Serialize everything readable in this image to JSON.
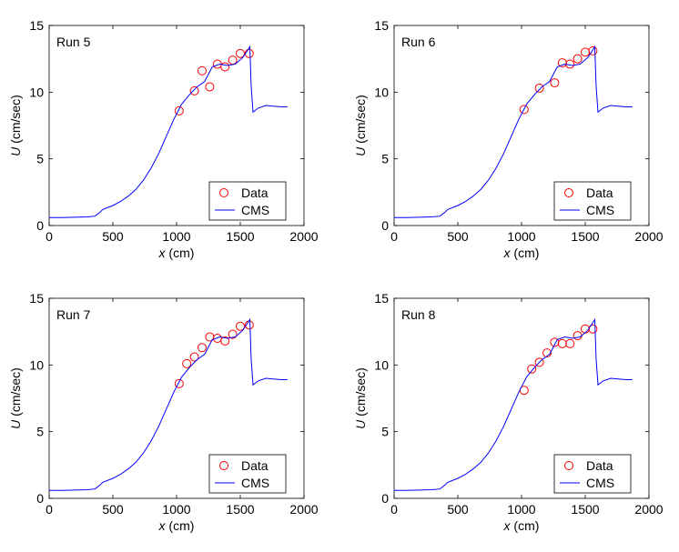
{
  "figure": {
    "colors": {
      "data": "#ff0000",
      "cms": "#0000ff",
      "axes": "#000000"
    }
  },
  "chart_data": [
    {
      "type": "line",
      "title": "Run 5",
      "xlabel_var": "x",
      "xlabel_unit": " (cm)",
      "ylabel_var": "U",
      "ylabel_unit": " (cm/sec)",
      "xlim": [
        0,
        2000
      ],
      "ylim": [
        0,
        15
      ],
      "xticks": [
        0,
        500,
        1000,
        1500,
        2000
      ],
      "yticks": [
        0,
        5,
        10,
        15
      ],
      "grid": false,
      "legend_position": "bottom-right",
      "series": [
        {
          "name": "Data",
          "kind": "scatter",
          "x": [
            1020,
            1140,
            1200,
            1260,
            1320,
            1380,
            1440,
            1500,
            1570
          ],
          "y": [
            8.6,
            10.1,
            11.6,
            10.4,
            12.1,
            11.9,
            12.4,
            12.9,
            12.9
          ]
        },
        {
          "name": "CMS",
          "kind": "line",
          "x": [
            0,
            100,
            200,
            300,
            360,
            400,
            420,
            500,
            560,
            620,
            680,
            740,
            800,
            860,
            920,
            980,
            1040,
            1100,
            1160,
            1220,
            1280,
            1340,
            1400,
            1460,
            1520,
            1575,
            1585,
            1600,
            1640,
            1700,
            1760,
            1820,
            1870
          ],
          "y": [
            0.6,
            0.6,
            0.62,
            0.65,
            0.7,
            1.0,
            1.2,
            1.5,
            1.8,
            2.2,
            2.7,
            3.4,
            4.3,
            5.4,
            6.7,
            8.0,
            9.1,
            9.8,
            10.4,
            10.8,
            11.9,
            12.1,
            12.0,
            12.1,
            12.6,
            13.4,
            10.5,
            8.5,
            8.8,
            9.0,
            8.95,
            8.9,
            8.9
          ]
        }
      ]
    },
    {
      "type": "line",
      "title": "Run 6",
      "xlabel_var": "x",
      "xlabel_unit": " (cm)",
      "ylabel_var": "U",
      "ylabel_unit": " (cm/sec)",
      "xlim": [
        0,
        2000
      ],
      "ylim": [
        0,
        15
      ],
      "xticks": [
        0,
        500,
        1000,
        1500,
        2000
      ],
      "yticks": [
        0,
        5,
        10,
        15
      ],
      "grid": false,
      "legend_position": "bottom-right",
      "series": [
        {
          "name": "Data",
          "kind": "scatter",
          "x": [
            1020,
            1140,
            1260,
            1320,
            1380,
            1440,
            1500,
            1560
          ],
          "y": [
            8.7,
            10.3,
            10.7,
            12.2,
            12.1,
            12.5,
            13.0,
            13.1
          ]
        },
        {
          "name": "CMS",
          "kind": "line",
          "x": [
            0,
            100,
            200,
            300,
            360,
            400,
            420,
            500,
            560,
            620,
            680,
            740,
            800,
            860,
            920,
            980,
            1040,
            1100,
            1160,
            1220,
            1280,
            1340,
            1400,
            1460,
            1520,
            1575,
            1585,
            1600,
            1640,
            1700,
            1760,
            1820,
            1870
          ],
          "y": [
            0.6,
            0.6,
            0.62,
            0.65,
            0.7,
            1.0,
            1.2,
            1.5,
            1.8,
            2.2,
            2.7,
            3.4,
            4.3,
            5.4,
            6.7,
            8.0,
            9.1,
            9.8,
            10.4,
            10.8,
            11.9,
            12.1,
            12.0,
            12.1,
            12.6,
            13.4,
            10.5,
            8.5,
            8.8,
            9.0,
            8.95,
            8.9,
            8.9
          ]
        }
      ]
    },
    {
      "type": "line",
      "title": "Run 7",
      "xlabel_var": "x",
      "xlabel_unit": " (cm)",
      "ylabel_var": "U",
      "ylabel_unit": " (cm/sec)",
      "xlim": [
        0,
        2000
      ],
      "ylim": [
        0,
        15
      ],
      "xticks": [
        0,
        500,
        1000,
        1500,
        2000
      ],
      "yticks": [
        0,
        5,
        10,
        15
      ],
      "grid": false,
      "legend_position": "bottom-right",
      "series": [
        {
          "name": "Data",
          "kind": "scatter",
          "x": [
            1020,
            1080,
            1140,
            1200,
            1260,
            1320,
            1380,
            1440,
            1500,
            1570
          ],
          "y": [
            8.6,
            10.1,
            10.6,
            11.3,
            12.1,
            12.0,
            11.8,
            12.3,
            12.9,
            13.0
          ]
        },
        {
          "name": "CMS",
          "kind": "line",
          "x": [
            0,
            100,
            200,
            300,
            360,
            400,
            420,
            500,
            560,
            620,
            680,
            740,
            800,
            860,
            920,
            980,
            1040,
            1100,
            1160,
            1220,
            1280,
            1340,
            1400,
            1460,
            1520,
            1575,
            1585,
            1600,
            1640,
            1700,
            1760,
            1820,
            1870
          ],
          "y": [
            0.6,
            0.6,
            0.62,
            0.65,
            0.7,
            1.0,
            1.2,
            1.5,
            1.8,
            2.2,
            2.7,
            3.4,
            4.3,
            5.4,
            6.7,
            8.0,
            9.1,
            9.8,
            10.4,
            10.8,
            11.9,
            12.1,
            12.0,
            12.1,
            12.6,
            13.4,
            10.5,
            8.5,
            8.8,
            9.0,
            8.95,
            8.9,
            8.9
          ]
        }
      ]
    },
    {
      "type": "line",
      "title": "Run 8",
      "xlabel_var": "x",
      "xlabel_unit": " (cm)",
      "ylabel_var": "U",
      "ylabel_unit": " (cm/sec)",
      "xlim": [
        0,
        2000
      ],
      "ylim": [
        0,
        15
      ],
      "xticks": [
        0,
        500,
        1000,
        1500,
        2000
      ],
      "yticks": [
        0,
        5,
        10,
        15
      ],
      "grid": false,
      "legend_position": "bottom-right",
      "series": [
        {
          "name": "Data",
          "kind": "scatter",
          "x": [
            1020,
            1080,
            1140,
            1200,
            1260,
            1320,
            1380,
            1440,
            1500,
            1560
          ],
          "y": [
            8.1,
            9.7,
            10.2,
            10.9,
            11.7,
            11.6,
            11.6,
            12.2,
            12.7,
            12.7
          ]
        },
        {
          "name": "CMS",
          "kind": "line",
          "x": [
            0,
            100,
            200,
            300,
            360,
            400,
            420,
            500,
            560,
            620,
            680,
            740,
            800,
            860,
            920,
            980,
            1040,
            1100,
            1160,
            1220,
            1280,
            1340,
            1400,
            1460,
            1520,
            1575,
            1585,
            1600,
            1640,
            1700,
            1760,
            1820,
            1870
          ],
          "y": [
            0.6,
            0.6,
            0.62,
            0.65,
            0.7,
            1.0,
            1.2,
            1.5,
            1.8,
            2.2,
            2.7,
            3.4,
            4.3,
            5.4,
            6.7,
            8.0,
            9.1,
            9.8,
            10.4,
            10.8,
            11.9,
            12.1,
            12.0,
            12.1,
            12.6,
            13.4,
            10.5,
            8.5,
            8.8,
            9.0,
            8.95,
            8.9,
            8.9
          ]
        }
      ]
    }
  ]
}
